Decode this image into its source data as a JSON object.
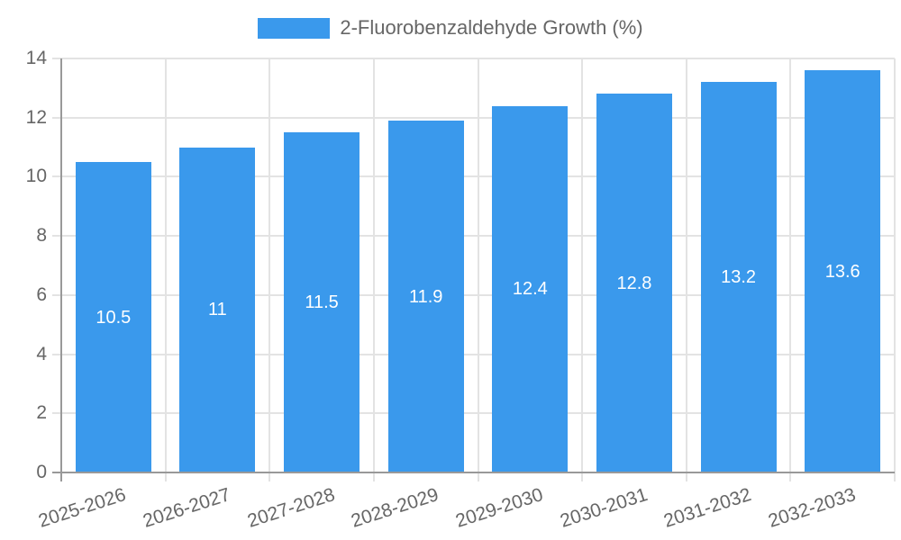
{
  "legend": {
    "label": "2-Fluorobenzaldehyde Growth (%)",
    "swatch_color": "#3a99ec"
  },
  "chart_data": {
    "type": "bar",
    "title": "2-Fluorobenzaldehyde Growth (%)",
    "categories": [
      "2025-2026",
      "2026-2027",
      "2027-2028",
      "2028-2029",
      "2029-2030",
      "2030-2031",
      "2031-2032",
      "2032-2033"
    ],
    "values": [
      10.5,
      11,
      11.5,
      11.9,
      12.4,
      12.8,
      13.2,
      13.6
    ],
    "bar_labels": [
      "10.5",
      "11",
      "11.5",
      "11.9",
      "12.4",
      "12.8",
      "13.2",
      "13.6"
    ],
    "xlabel": "",
    "ylabel": "",
    "ylim": [
      0,
      14
    ],
    "yticks": [
      0,
      2,
      4,
      6,
      8,
      10,
      12,
      14
    ],
    "grid": true,
    "legend_position": "top",
    "colors": {
      "bar": "#3a99ec",
      "bar_label_text": "#ffffff",
      "axis_text": "#666666",
      "gridline": "#e3e3e3",
      "axis_line": "#999999"
    }
  }
}
